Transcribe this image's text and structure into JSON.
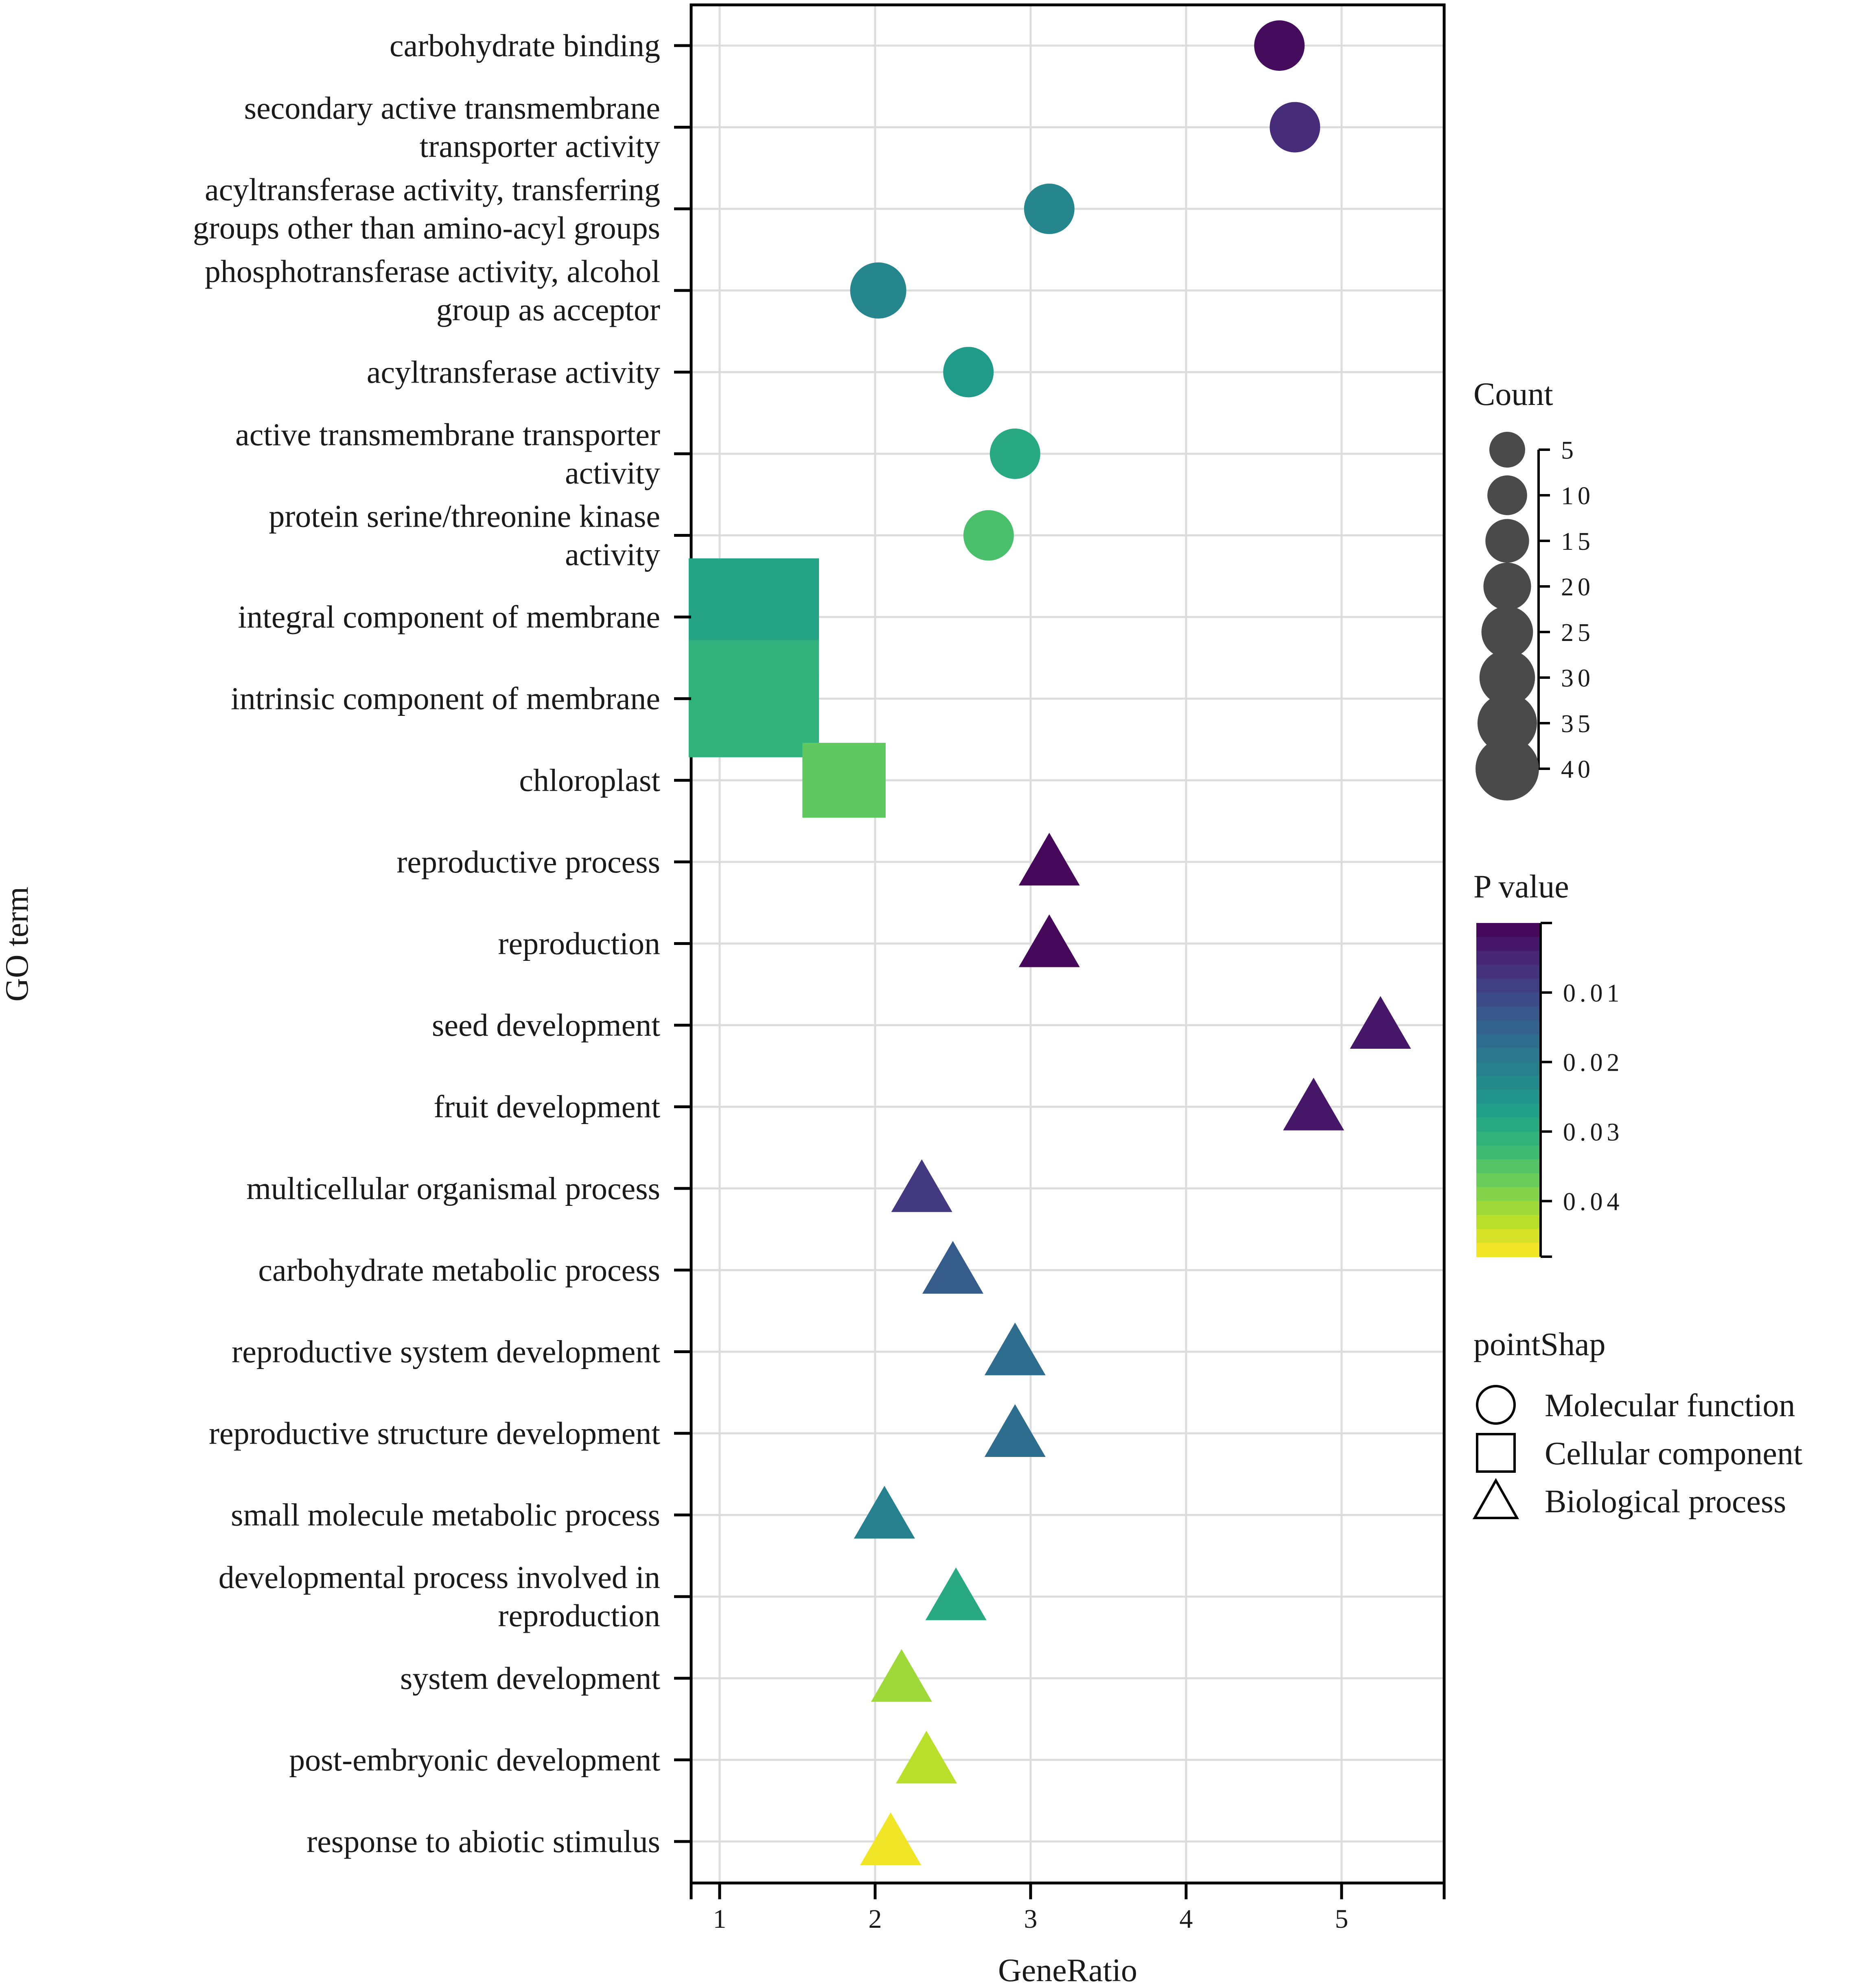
{
  "chart_data": {
    "type": "scatter",
    "xlabel": "GeneRatio",
    "ylabel": "GO term",
    "xlim": [
      0.8,
      5.65
    ],
    "xticks": [
      1,
      2,
      3,
      4,
      5
    ],
    "grid": true,
    "points": [
      {
        "term": "carbohydrate binding",
        "x": 4.6,
        "count": 15,
        "p": 0.0015,
        "category": "Molecular function"
      },
      {
        "term": "secondary active transmembrane\ntransporter activity",
        "x": 4.7,
        "count": 15,
        "p": 0.006,
        "category": "Molecular function"
      },
      {
        "term": "acyltransferase activity, transferring\ngroups other than amino-acyl groups",
        "x": 3.12,
        "count": 15,
        "p": 0.022,
        "category": "Molecular function"
      },
      {
        "term": "phosphotransferase activity, alcohol\ngroup as acceptor",
        "x": 2.02,
        "count": 20,
        "p": 0.022,
        "category": "Molecular function"
      },
      {
        "term": "acyltransferase activity",
        "x": 2.6,
        "count": 15,
        "p": 0.026,
        "category": "Molecular function"
      },
      {
        "term": "active transmembrane transporter\nactivity",
        "x": 2.9,
        "count": 15,
        "p": 0.029,
        "category": "Molecular function"
      },
      {
        "term": "protein serine/threonine kinase\nactivity",
        "x": 2.73,
        "count": 15,
        "p": 0.034,
        "category": "Molecular function"
      },
      {
        "term": "integral component of membrane",
        "x": 1.22,
        "count": 40,
        "p": 0.028,
        "category": "Cellular component"
      },
      {
        "term": "intrinsic component of membrane",
        "x": 1.22,
        "count": 40,
        "p": 0.031,
        "category": "Cellular component"
      },
      {
        "term": "chloroplast",
        "x": 1.8,
        "count": 15,
        "p": 0.036,
        "category": "Cellular component"
      },
      {
        "term": "reproductive process",
        "x": 3.12,
        "count": 15,
        "p": 0.001,
        "category": "Biological process"
      },
      {
        "term": "reproduction",
        "x": 3.12,
        "count": 15,
        "p": 0.001,
        "category": "Biological process"
      },
      {
        "term": "seed development",
        "x": 5.25,
        "count": 15,
        "p": 0.003,
        "category": "Biological process"
      },
      {
        "term": "fruit development",
        "x": 4.82,
        "count": 15,
        "p": 0.003,
        "category": "Biological process"
      },
      {
        "term": "multicellular organismal process",
        "x": 2.3,
        "count": 15,
        "p": 0.008,
        "category": "Biological process"
      },
      {
        "term": "carbohydrate metabolic process",
        "x": 2.5,
        "count": 15,
        "p": 0.014,
        "category": "Biological process"
      },
      {
        "term": "reproductive system development",
        "x": 2.9,
        "count": 15,
        "p": 0.017,
        "category": "Biological process"
      },
      {
        "term": "reproductive structure development",
        "x": 2.9,
        "count": 15,
        "p": 0.017,
        "category": "Biological process"
      },
      {
        "term": "small molecule metabolic process",
        "x": 2.06,
        "count": 15,
        "p": 0.021,
        "category": "Biological process"
      },
      {
        "term": "developmental process involved in\nreproduction",
        "x": 2.52,
        "count": 15,
        "p": 0.029,
        "category": "Biological process"
      },
      {
        "term": "system development",
        "x": 2.17,
        "count": 15,
        "p": 0.041,
        "category": "Biological process"
      },
      {
        "term": "post-embryonic development",
        "x": 2.33,
        "count": 15,
        "p": 0.043,
        "category": "Biological process"
      },
      {
        "term": "response to abiotic stimulus",
        "x": 2.1,
        "count": 15,
        "p": 0.047,
        "category": "Biological process"
      }
    ],
    "legend_count": {
      "title": "Count",
      "values": [
        5,
        10,
        15,
        20,
        25,
        30,
        35,
        40
      ]
    },
    "legend_pvalue": {
      "title": "P value",
      "ticks": [
        "0.01",
        "0.02",
        "0.03",
        "0.04"
      ],
      "range": [
        0,
        0.048
      ]
    },
    "legend_shape": {
      "title": "pointShap",
      "items": [
        "Molecular function",
        "Cellular component",
        "Biological process"
      ]
    }
  }
}
